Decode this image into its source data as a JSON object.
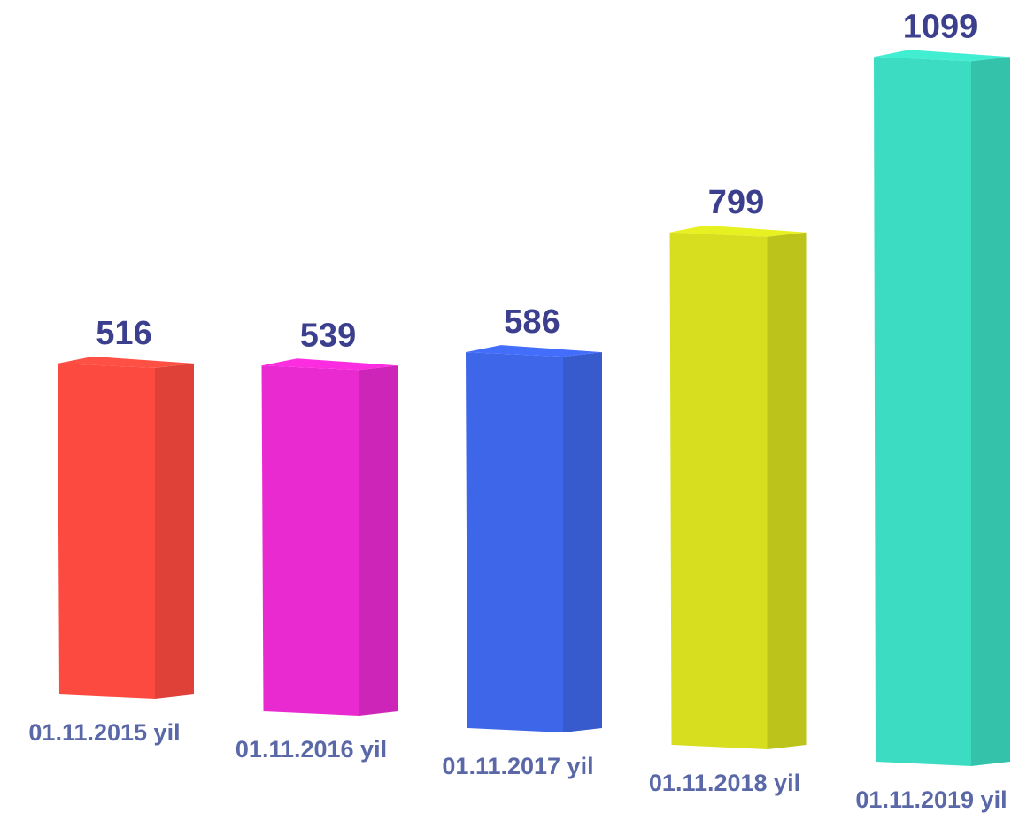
{
  "chart_data": {
    "type": "bar3d",
    "categories": [
      "01.11.2015 yil",
      "01.11.2016 yil",
      "01.11.2017 yil",
      "01.11.2018 yil",
      "01.11.2019 yil"
    ],
    "values": [
      516,
      539,
      586,
      799,
      1099
    ],
    "colors": [
      "#fd4a40",
      "#e92ad0",
      "#3e66e8",
      "#d6de1f",
      "#3cdcc2"
    ]
  }
}
